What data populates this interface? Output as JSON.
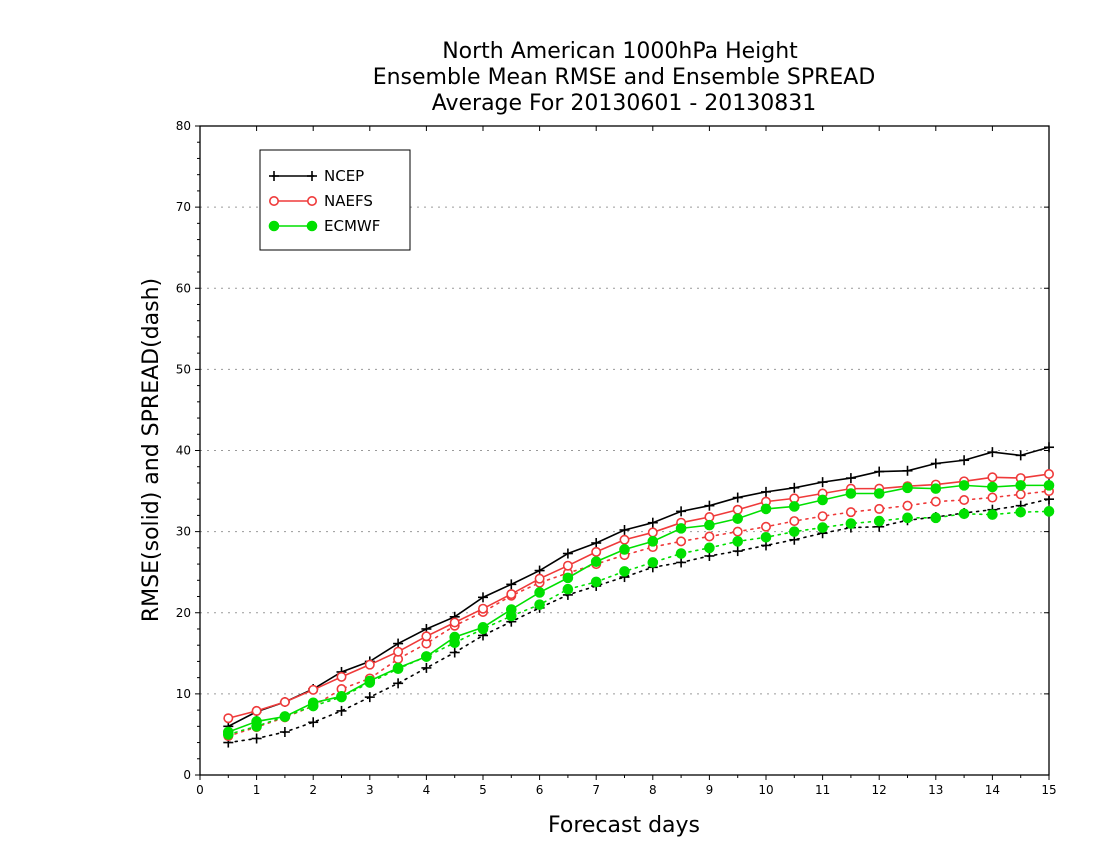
{
  "chart_data": {
    "type": "line",
    "title": [
      "North American 1000hPa Height",
      "Ensemble Mean RMSE and Ensemble SPREAD",
      "Average For 20130601 - 20130831"
    ],
    "xlabel": "Forecast days",
    "ylabel": "RMSE(solid) and SPREAD(dash)",
    "xlim": [
      0,
      15
    ],
    "ylim": [
      0,
      80
    ],
    "xticks": [
      "0",
      "1",
      "2",
      "3",
      "4",
      "5",
      "6",
      "7",
      "8",
      "9",
      "10",
      "11",
      "12",
      "13",
      "14",
      "15"
    ],
    "yticks": [
      "0",
      "10",
      "20",
      "30",
      "40",
      "50",
      "60",
      "70",
      "80"
    ],
    "grid": "horizontal dotted",
    "legend_position": "top-left",
    "x": [
      0.5,
      1,
      1.5,
      2,
      2.5,
      3,
      3.5,
      4,
      4.5,
      5,
      5.5,
      6,
      6.5,
      7,
      7.5,
      8,
      8.5,
      9,
      9.5,
      10,
      10.5,
      11,
      11.5,
      12,
      12.5,
      13,
      13.5,
      14,
      14.5,
      15
    ],
    "series": [
      {
        "name": "NCEP",
        "color": "#000000",
        "marker": "plus",
        "rmse": [
          6.0,
          7.8,
          9.0,
          10.6,
          12.7,
          14.0,
          16.2,
          18.0,
          19.5,
          21.9,
          23.5,
          25.2,
          27.3,
          28.6,
          30.2,
          31.1,
          32.5,
          33.2,
          34.2,
          34.9,
          35.4,
          36.1,
          36.6,
          37.4,
          37.5,
          38.4,
          38.8,
          39.8,
          39.4,
          40.4
        ],
        "spread": [
          4.0,
          4.5,
          5.3,
          6.5,
          7.9,
          9.6,
          11.3,
          13.2,
          15.1,
          17.2,
          18.9,
          20.6,
          22.2,
          23.3,
          24.4,
          25.6,
          26.2,
          27.0,
          27.6,
          28.3,
          29.0,
          29.8,
          30.5,
          30.6,
          31.4,
          31.8,
          32.3,
          32.7,
          33.2,
          34.0
        ]
      },
      {
        "name": "NAEFS",
        "color": "#ef3a3a",
        "marker": "open-circle",
        "rmse": [
          7.0,
          7.9,
          9.0,
          10.5,
          12.1,
          13.6,
          15.2,
          17.1,
          18.8,
          20.5,
          22.3,
          24.2,
          25.8,
          27.5,
          29.0,
          29.9,
          31.1,
          31.8,
          32.7,
          33.7,
          34.1,
          34.7,
          35.3,
          35.3,
          35.6,
          35.8,
          36.2,
          36.7,
          36.6,
          37.1
        ],
        "spread": [
          4.8,
          5.9,
          7.1,
          8.5,
          10.6,
          11.9,
          14.3,
          16.2,
          18.4,
          20.1,
          22.1,
          23.7,
          24.9,
          26.0,
          27.1,
          28.1,
          28.8,
          29.4,
          30.0,
          30.6,
          31.3,
          31.9,
          32.4,
          32.8,
          33.2,
          33.7,
          33.9,
          34.2,
          34.6,
          35.0
        ]
      },
      {
        "name": "ECMWF",
        "color": "#00e000",
        "marker": "filled-circle",
        "rmse": [
          5.3,
          6.6,
          7.2,
          8.9,
          9.7,
          11.6,
          13.2,
          14.6,
          17.0,
          18.2,
          20.4,
          22.5,
          24.3,
          26.3,
          27.8,
          28.8,
          30.4,
          30.8,
          31.6,
          32.8,
          33.1,
          33.9,
          34.7,
          34.7,
          35.4,
          35.3,
          35.7,
          35.5,
          35.7,
          35.7
        ],
        "spread": [
          5.0,
          6.0,
          7.2,
          8.5,
          9.6,
          11.4,
          13.1,
          14.6,
          16.3,
          18.0,
          19.6,
          21.0,
          22.9,
          23.8,
          25.1,
          26.2,
          27.3,
          28.0,
          28.8,
          29.3,
          30.0,
          30.5,
          31.0,
          31.3,
          31.7,
          31.7,
          32.2,
          32.1,
          32.4,
          32.5
        ]
      }
    ]
  }
}
